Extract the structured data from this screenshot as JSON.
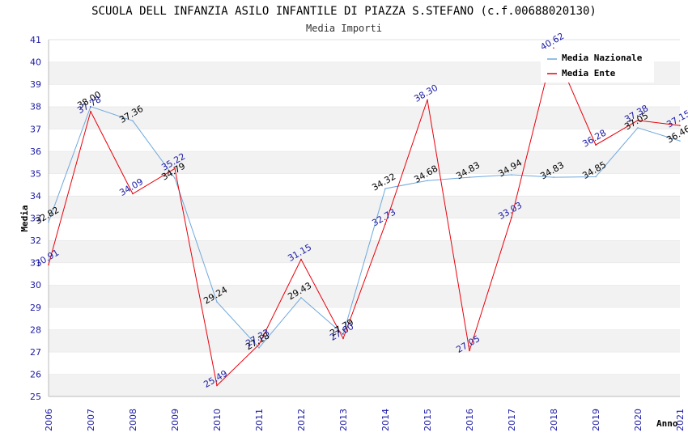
{
  "chart_data": {
    "type": "line",
    "title": "SCUOLA DELL INFANZIA ASILO INFANTILE DI PIAZZA S.STEFANO (c.f.00688020130)",
    "subtitle": "Media Importi",
    "xlabel": "Anno",
    "ylabel": "Media",
    "ylim": [
      25,
      41
    ],
    "yticks": [
      "25",
      "26",
      "27",
      "28",
      "29",
      "30",
      "31",
      "32",
      "33",
      "34",
      "35",
      "36",
      "37",
      "38",
      "39",
      "40",
      "41"
    ],
    "categories": [
      "2006",
      "2007",
      "2008",
      "2009",
      "2010",
      "2011",
      "2012",
      "2013",
      "2014",
      "2015",
      "2016",
      "2017",
      "2018",
      "2019",
      "2020",
      "2021"
    ],
    "series": [
      {
        "name": "Media Nazionale",
        "color": "#6fa8dc",
        "label_color": "#000000",
        "values": [
          32.82,
          38.0,
          37.36,
          34.79,
          29.24,
          27.18,
          29.43,
          27.79,
          34.32,
          34.68,
          34.83,
          34.94,
          34.83,
          34.85,
          37.05,
          36.46
        ],
        "labels": [
          "32.82",
          "38.00",
          "37.36",
          "34.79",
          "29.24",
          "27.18",
          "29.43",
          "27.79",
          "34.32",
          "34.68",
          "34.83",
          "34.94",
          "34.83",
          "34.85",
          "37.05",
          "36.46"
        ]
      },
      {
        "name": "Media Ente",
        "color": "#e8000b",
        "label_color": "#1a1aa6",
        "values": [
          30.91,
          37.78,
          34.09,
          35.22,
          25.49,
          27.33,
          31.15,
          27.6,
          32.73,
          38.3,
          27.05,
          33.03,
          40.62,
          36.28,
          37.38,
          37.15
        ],
        "labels": [
          "30.91",
          "37.78",
          "34.09",
          "35.22",
          "25.49",
          "27.33",
          "31.15",
          "27.60",
          "32.73",
          "38.30",
          "27.05",
          "33.03",
          "40.62",
          "36.28",
          "37.38",
          "37.15"
        ]
      }
    ],
    "legend": "top-right",
    "grid": true
  }
}
